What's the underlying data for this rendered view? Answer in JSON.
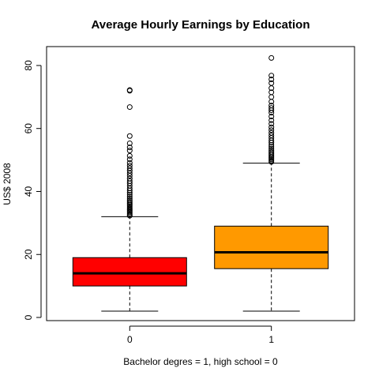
{
  "chart_data": {
    "type": "boxplot",
    "title": "Average Hourly Earnings by Education",
    "xlabel": "Bachelor degres = 1, high school = 0",
    "ylabel": "US$ 2008",
    "ylim": [
      -1,
      86
    ],
    "y_ticks": [
      0,
      20,
      40,
      60,
      80
    ],
    "categories": [
      "0",
      "1"
    ],
    "boxes": [
      {
        "category": "0",
        "color": "#FF0000",
        "whisker_low": 2,
        "q1": 10,
        "median": 14,
        "q3": 19,
        "whisker_high": 32,
        "outliers": [
          32.3,
          32.6,
          33,
          33.4,
          33.8,
          34.2,
          34.6,
          35,
          35.4,
          35.8,
          36.2,
          36.7,
          37.2,
          37.8,
          38.4,
          39,
          39.6,
          40.3,
          41,
          41.8,
          42.6,
          43.3,
          44.1,
          45,
          45.8,
          46.6,
          47.4,
          48.2,
          49.1,
          50.2,
          51.3,
          53,
          54,
          55.3,
          57.6,
          66.8,
          72,
          72.2
        ]
      },
      {
        "category": "1",
        "color": "#FF9900",
        "whisker_low": 2,
        "q1": 15.5,
        "median": 20.7,
        "q3": 29,
        "whisker_high": 49,
        "outliers": [
          49.4,
          49.8,
          50.2,
          50.6,
          51,
          51.5,
          52,
          52.5,
          53,
          53.6,
          54.2,
          54.8,
          55.5,
          56.2,
          57,
          57.8,
          58.6,
          59.5,
          60.4,
          61.5,
          62.6,
          63.8,
          65,
          65.8,
          66.5,
          67.3,
          68.5,
          70,
          71.5,
          72.8,
          74.4,
          75.6,
          76.8,
          82.4
        ]
      }
    ]
  }
}
